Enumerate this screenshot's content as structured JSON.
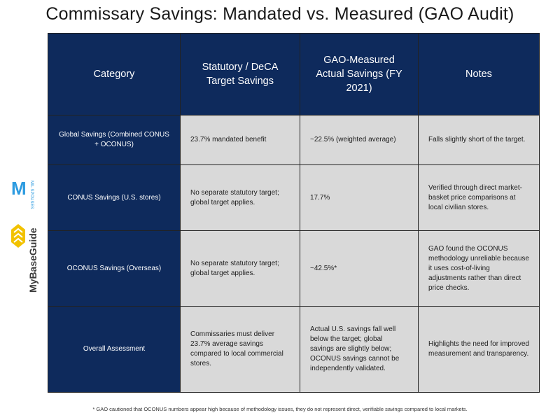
{
  "title": "Commissary Savings: Mandated vs. Measured (GAO Audit)",
  "table": {
    "headers": [
      "Category",
      "Statutory / DeCA Target Savings",
      "GAO-Measured Actual Savings (FY 2021)",
      "Notes"
    ],
    "rows": [
      {
        "category": "Global Savings (Combined CONUS + OCONUS)",
        "target": "23.7% mandated benefit",
        "measured": "~22.5% (weighted average)",
        "notes": "Falls slightly short of the target."
      },
      {
        "category": "CONUS Savings (U.S. stores)",
        "target": "No separate statutory target; global target applies.",
        "measured": "17.7%",
        "notes": "Verified through direct market-basket price comparisons at local civilian stores."
      },
      {
        "category": "OCONUS Savings (Overseas)",
        "target": "No separate statutory target; global target applies.",
        "measured": "~42.5%*",
        "notes": "GAO found the OCONUS methodology unreliable because it uses cost-of-living adjustments rather than direct price checks."
      },
      {
        "category": "Overall Assessment",
        "target": "Commissaries must deliver 23.7% average savings compared to local commercial stores.",
        "measured": "Actual U.S. savings fall well below the target; global savings are slightly below; OCONUS savings cannot be independently validated.",
        "notes": "Highlights the need for improved measurement and transparency."
      }
    ]
  },
  "logos": {
    "spouses_letter": "M",
    "spouses_text": "MIL SPOUSES",
    "mybaseguide_text": "MyBaseGuide"
  },
  "footnote": "* GAO cautioned that OCONUS numbers appear high because of methodology issues, they do not represent direct, verifiable savings compared to local markets.",
  "colors": {
    "navy": "#0e2a5c",
    "cell_gray": "#d9d9d9",
    "logo_blue": "#2d9be0",
    "logo_yellow": "#f2c200"
  }
}
